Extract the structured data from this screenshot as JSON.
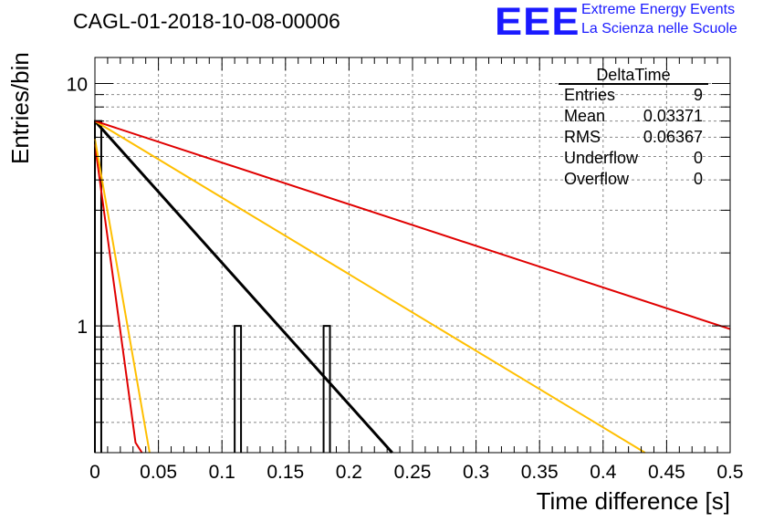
{
  "header": {
    "run_title": "CAGL-01-2018-10-08-00006",
    "logo_text": "EEE",
    "logo_line1": "Extreme Energy Events",
    "logo_line2": "La Scienza nelle Scuole"
  },
  "colors": {
    "histogram": "#000000",
    "fit_black": "#000000",
    "fit_red": "#e00000",
    "fit_orange": "#ffbf00",
    "logo": "#1a1aff"
  },
  "chart_data": {
    "type": "bar",
    "title": "CAGL-01-2018-10-08-00006",
    "xlabel": "Time difference [s]",
    "ylabel": "Entries/bin",
    "xlim": [
      0,
      0.5
    ],
    "ylim": [
      0.3,
      12.8
    ],
    "log_y": true,
    "grid": true,
    "x_ticks": [
      "0",
      "0.05",
      "0.1",
      "0.15",
      "0.2",
      "0.25",
      "0.3",
      "0.35",
      "0.4",
      "0.45",
      "0.5"
    ],
    "y_ticks": [
      "1",
      "10"
    ],
    "histogram": {
      "bin_width": 0.005,
      "bins": [
        {
          "x_low": 0.0,
          "x_high": 0.005,
          "value": 7
        },
        {
          "x_low": 0.11,
          "x_high": 0.115,
          "value": 1
        },
        {
          "x_low": 0.18,
          "x_high": 0.185,
          "value": 1
        }
      ]
    },
    "series": [
      {
        "color": "black",
        "x": [
          0.0,
          0.234
        ],
        "values": [
          7,
          0.3
        ]
      },
      {
        "color": "red",
        "x": [
          0.0,
          0.032,
          0.037
        ],
        "values": [
          5.6,
          0.33,
          0.3
        ]
      },
      {
        "color": "orange",
        "x": [
          0.0,
          0.043
        ],
        "values": [
          5.9,
          0.3
        ]
      },
      {
        "color": "orange",
        "x": [
          0.0,
          0.433
        ],
        "values": [
          7,
          0.3
        ]
      },
      {
        "color": "red",
        "x": [
          0.0,
          0.5
        ],
        "values": [
          7,
          0.97
        ]
      }
    ],
    "stats": {
      "title": "DeltaTime",
      "rows": [
        {
          "label": "Entries",
          "value": "9"
        },
        {
          "label": "Mean",
          "value": "0.03371"
        },
        {
          "label": "RMS",
          "value": "0.06367"
        },
        {
          "label": "Underflow",
          "value": "0"
        },
        {
          "label": "Overflow",
          "value": "0"
        }
      ]
    }
  }
}
